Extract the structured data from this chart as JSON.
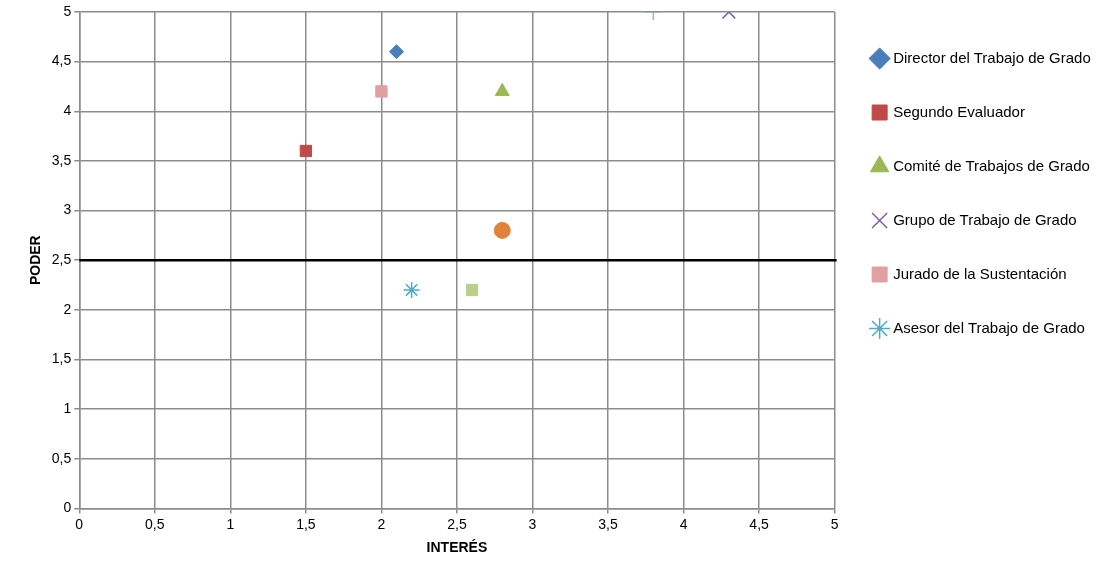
{
  "chart_data": {
    "type": "scatter",
    "xlabel": "INTERÉS",
    "ylabel": "PODER",
    "xlim": [
      0,
      5
    ],
    "ylim": [
      0,
      5
    ],
    "xticks": [
      0,
      {
        "value": 0.5,
        "label": "0,5"
      },
      1,
      {
        "value": 1.5,
        "label": "1,5"
      },
      2,
      {
        "value": 2.5,
        "label": "2,5"
      },
      3,
      {
        "value": 3.5,
        "label": "3,5"
      },
      4,
      {
        "value": 4.5,
        "label": "4,5"
      },
      5
    ],
    "yticks": [
      0,
      {
        "value": 0.5,
        "label": "0,5"
      },
      1,
      {
        "value": 1.5,
        "label": "1,5"
      },
      2,
      {
        "value": 2.5,
        "label": "2,5"
      },
      3,
      {
        "value": 3.5,
        "label": "3,5"
      },
      4,
      {
        "value": 4.5,
        "label": "4,5"
      },
      5
    ],
    "grid": true,
    "legend": "right",
    "ref_lines": [
      {
        "axis": "y",
        "value": 2.5,
        "color": "#000000"
      }
    ],
    "series": [
      {
        "name": "Director del Trabajo de Grado",
        "color": "#4a7ebb",
        "marker": "diamond",
        "x": [
          2.1
        ],
        "values": [
          4.6
        ]
      },
      {
        "name": "Segundo Evaluador",
        "color": "#be4b48",
        "marker": "square",
        "x": [
          1.5
        ],
        "values": [
          3.6
        ]
      },
      {
        "name": "Comité de Trabajos de Grado",
        "color": "#98b954",
        "marker": "triangle",
        "x": [
          2.8
        ],
        "values": [
          4.2
        ]
      },
      {
        "name": "Grupo de Trabajo de Grado",
        "color": "#7d60a0",
        "marker": "x",
        "x": [
          4.3
        ],
        "values": [
          5
        ]
      },
      {
        "name": "Jurado de la Sustentación",
        "color": "#e0a0a0",
        "marker": "square",
        "x": [
          2.0
        ],
        "values": [
          4.2
        ]
      },
      {
        "name": "Asesor del Trabajo de Grado",
        "color": "#4bacc6",
        "marker": "cross",
        "x": [
          2.2
        ],
        "values": [
          2.2
        ]
      },
      {
        "color": "#95b3d7",
        "marker": "plus",
        "x": [
          3.8
        ],
        "values": [
          5
        ]
      },
      {
        "color": "#e0823a",
        "marker": "circle",
        "x": [
          2.8
        ],
        "values": [
          2.8
        ]
      },
      {
        "color": "#b8d08a",
        "marker": "square",
        "x": [
          2.6
        ],
        "values": [
          2.2
        ]
      }
    ]
  }
}
